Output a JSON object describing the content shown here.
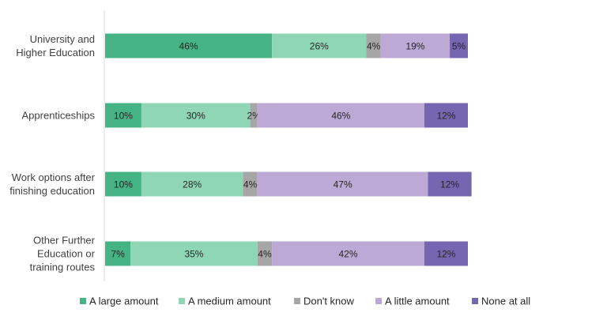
{
  "chart_data": {
    "type": "bar",
    "orientation": "horizontal",
    "stacked": true,
    "title": "",
    "xlabel": "",
    "ylabel": "",
    "xlim": [
      0,
      100
    ],
    "grid": false,
    "legend": {
      "position": "bottom"
    },
    "categories": [
      [
        "University and",
        "Higher Education"
      ],
      [
        "Apprenticeships"
      ],
      [
        "Work options after",
        "finishing education"
      ],
      [
        "Other Further",
        "Education or",
        "training routes"
      ]
    ],
    "series": [
      {
        "name": "A large amount",
        "color": "#45b384",
        "values": [
          46,
          10,
          10,
          7
        ]
      },
      {
        "name": "A medium amount",
        "color": "#8fd6b6",
        "values": [
          26,
          30,
          28,
          35
        ]
      },
      {
        "name": "Don't know",
        "color": "#a6a6a6",
        "values": [
          4,
          2,
          4,
          4
        ]
      },
      {
        "name": "A little amount",
        "color": "#bca9d5",
        "values": [
          19,
          46,
          47,
          42
        ]
      },
      {
        "name": "None at all",
        "color": "#7466b1",
        "values": [
          5,
          12,
          12,
          12
        ]
      }
    ],
    "value_suffix": "%",
    "light_label_series": [
      "None at all"
    ],
    "light_label_color": "#ffffff",
    "dark_label_color": "#262626"
  }
}
